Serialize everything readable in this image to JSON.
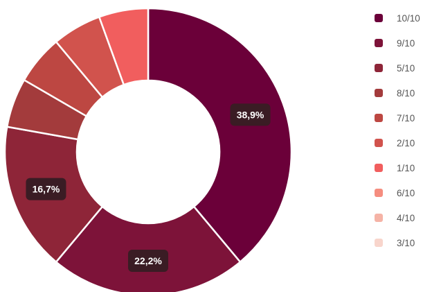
{
  "chart_data": {
    "type": "pie",
    "donut": true,
    "categories": [
      "10/10",
      "9/10",
      "5/10",
      "8/10",
      "7/10",
      "2/10",
      "1/10",
      "6/10",
      "4/10",
      "3/10"
    ],
    "values": [
      38.9,
      22.2,
      16.7,
      5.55,
      5.55,
      5.55,
      5.55,
      0,
      0,
      0
    ],
    "data_labels": [
      "38,9%",
      "22,2%",
      "16,7%",
      "",
      "",
      "",
      "",
      "",
      "",
      ""
    ],
    "colors": [
      "#6b0039",
      "#7d1339",
      "#8e2538",
      "#a33b3c",
      "#bd4742",
      "#d1534d",
      "#f15e5e",
      "#f58d7f",
      "#f5b3a6",
      "#f8d5cc"
    ],
    "legend_position": "right"
  }
}
